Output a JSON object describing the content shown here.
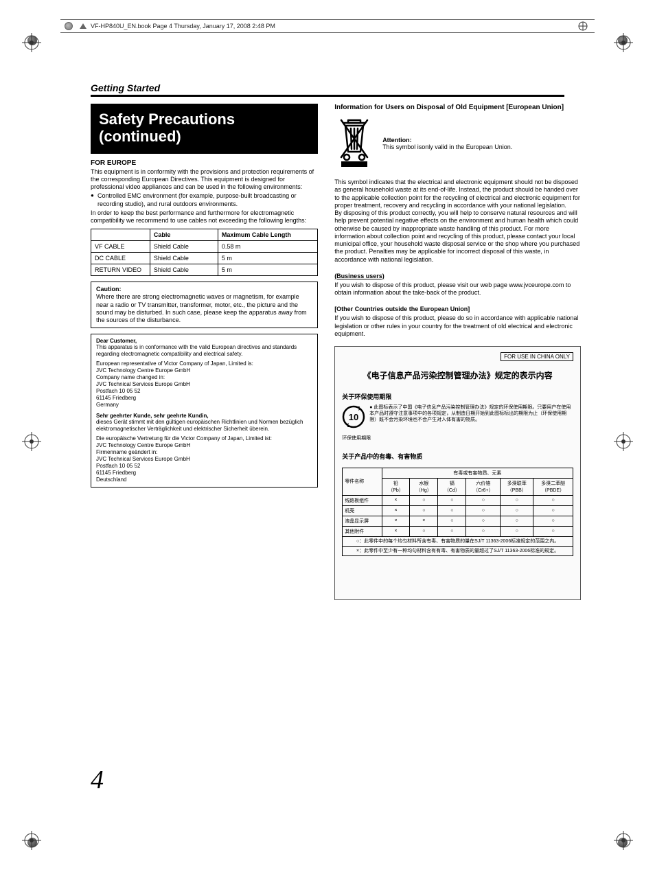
{
  "header_strip": {
    "text": "VF-HP840U_EN.book  Page 4  Thursday, January 17, 2008  2:48 PM"
  },
  "section_title": "Getting Started",
  "black_box": {
    "line1": "Safety Precautions",
    "line2": "(continued)"
  },
  "left": {
    "europe_head": "FOR EUROPE",
    "europe_body1": "This equipment is in conformity with the provisions and protection requirements of the corresponding European Directives. This equipment is designed for professional video appliances and can be used in the following environments:",
    "europe_bullet1": "Controlled EMC environment (for example, purpose-built broadcasting or recording studio), and rural outdoors environments.",
    "europe_body2": "In order to keep the best performance and furthermore for electromagnetic compatibility we recommend to use cables not exceeding the following lengths:",
    "cable_table": {
      "h1": "",
      "h2": "Cable",
      "h3": "Maximum Cable Length",
      "rows": [
        [
          "VF CABLE",
          "Shield Cable",
          "0.58 m"
        ],
        [
          "DC CABLE",
          "Shield Cable",
          "5 m"
        ],
        [
          "RETURN VIDEO",
          "Shield Cable",
          "5 m"
        ]
      ]
    },
    "caution": {
      "title": "Caution:",
      "body": "Where there are strong electromagnetic waves or magnetism, for example near a radio or TV transmitter, transformer, motor, etc., the picture and the sound may be disturbed. In such case, please keep the apparatus away from the sources of the disturbance."
    },
    "dear": {
      "title": "Dear Customer,",
      "p1": "This apparatus is in conformance with the valid European directives and standards regarding electromagnetic compatibility and electrical safety.",
      "p2": "European representative of Victor Company of Japan, Limited is:",
      "addr": "JVC Technology Centre Europe GmbH\nCompany name changed in:\nJVC Technical Services Europe GmbH\nPostfach 10 05 52\n61145 Friedberg\nGermany",
      "title_de": "Sehr geehrter Kunde, sehr geehrte Kundin,",
      "p1_de": "dieses Gerät stimmt mit den gültigen europäischen Richtlinien und Normen bezüglich elektromagnetischer Verträglichkeit und elektrischer Sicherheit überein.",
      "p2_de": "Die europäische Vertretung für die Victor Company of Japan, Limited ist:",
      "addr_de": "JVC Technology Centre Europe GmbH\nFirmenname geändert in:\nJVC Technical Services Europe GmbH\nPostfach 10 05 52\n61145 Friedberg\nDeutschland"
    }
  },
  "right": {
    "disposal_head": "Information for Users on Disposal of Old Equipment [European Union]",
    "attention_label": "Attention:",
    "attention_body": "This symbol isonly valid in the European Union.",
    "p1": "This symbol indicates that the electrical and electronic equipment should not be disposed as general household waste at its end-of-life. Instead, the product should be handed over to the applicable collection point for the recycling of electrical and electronic equipment for proper treatment, recovery and recycling in accordance with your national legislation.",
    "p2": "By disposing of this product correctly, you will help to conserve natural resources and will help prevent potential negative effects on the environment and human health which could otherwise be caused by inappropriate waste handling of this product. For more information about collection point and recycling of this product, please contact your local municipal office, your household waste disposal service or the shop where you purchased the product. Penalties may be applicable for incorrect disposal of this waste, in accordance with national legislation.",
    "biz_head": "(Business users)",
    "biz_body": "If you wish to dispose of this product, please visit our web page www.jvceurope.com to obtain information about the take-back of the product.",
    "other_head": "[Other Countries outside the European Union]",
    "other_body": "If you wish to dispose of this product, please do so in accordance with applicable national legislation or other rules in your country for the treatment of old electrical and electronic equipment."
  },
  "china": {
    "box_label": "FOR USE IN CHINA ONLY",
    "title": "《电子信息产品污染控制管理办法》规定的表示内容",
    "sub1": "关于环保使用期限",
    "badge_text": "10",
    "sub1_body": "此图标表示了中国《电子信息产品污染控制管理办法》规定的环保使用期限。只要用户在使用本产品时遵守注意事项中的各项规定，从制造日期开始到此图标标出的期限为止（环保使用期限）既不会污染环境也不会产生对人体有害的物质。",
    "sub1_foot": "环保使用期限",
    "sub2": "关于产品中的有毒、有害物质",
    "rohs": {
      "col_part": "零件名称",
      "col_group": "有毒或有害物质、元素",
      "cols": [
        {
          "t": "铅",
          "s": "（Pb）"
        },
        {
          "t": "水银",
          "s": "（Hg）"
        },
        {
          "t": "镉",
          "s": "（Cd）"
        },
        {
          "t": "六价铬",
          "s": "（Cr6+）"
        },
        {
          "t": "多溴联苯",
          "s": "（PBB）"
        },
        {
          "t": "多溴二苯醚",
          "s": "（PBDE）"
        }
      ],
      "rows": [
        [
          "线路板组件",
          "×",
          "○",
          "○",
          "○",
          "○",
          "○"
        ],
        [
          "机壳",
          "×",
          "○",
          "○",
          "○",
          "○",
          "○"
        ],
        [
          "液晶显示屏",
          "×",
          "×",
          "○",
          "○",
          "○",
          "○"
        ],
        [
          "其他附件",
          "×",
          "○",
          "○",
          "○",
          "○",
          "○"
        ]
      ],
      "note_o": "○：此零件中的每个均匀材料所含有毒、有害物质的量在SJ/T 11363-2006标准规定的范围之内。",
      "note_x": "×：此零件中至少有一种均匀材料含有有毒、有害物质的量超过了SJ/T 11363-2006标准的规定。"
    }
  },
  "page_number": "4"
}
